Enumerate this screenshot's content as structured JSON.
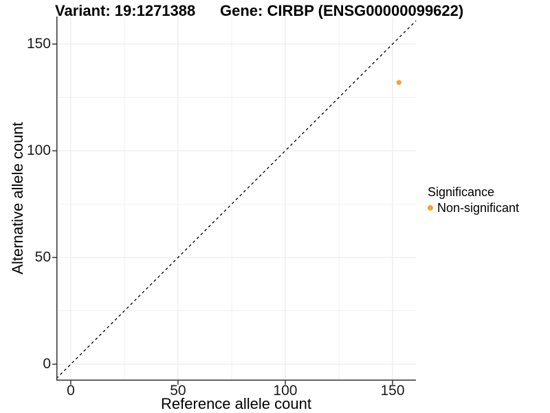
{
  "chart_data": {
    "type": "scatter",
    "title_left": "Variant: 19:1271388",
    "title_right": "Gene: CIRBP (ENSG00000099622)",
    "xlabel": "Reference allele count",
    "ylabel": "Alternative allele count",
    "xlim": [
      -6.7,
      160.9
    ],
    "ylim": [
      -7.7,
      162.9
    ],
    "x_ticks": [
      0,
      50,
      100,
      150
    ],
    "y_ticks": [
      0,
      50,
      100,
      150
    ],
    "x_minor_ticks": [
      25,
      75,
      125
    ],
    "y_minor_ticks": [
      25,
      75,
      125
    ],
    "grid": true,
    "identity_line": {
      "type": "dashed",
      "slope": 1,
      "intercept": 0,
      "color": "#000000"
    },
    "points": [
      {
        "x": 153,
        "y": 132,
        "series": "Non-significant"
      }
    ],
    "legend": {
      "title": "Significance",
      "position": "right",
      "items": [
        {
          "label": "Non-significant",
          "color": "#F9A325"
        }
      ]
    },
    "colors": {
      "point": "#F9A325",
      "grid_major": "#E7E7E7",
      "grid_minor": "#F1F1F1",
      "axis_line": "#333333",
      "tick_mark": "#333333",
      "background": "#FFFFFF"
    }
  }
}
